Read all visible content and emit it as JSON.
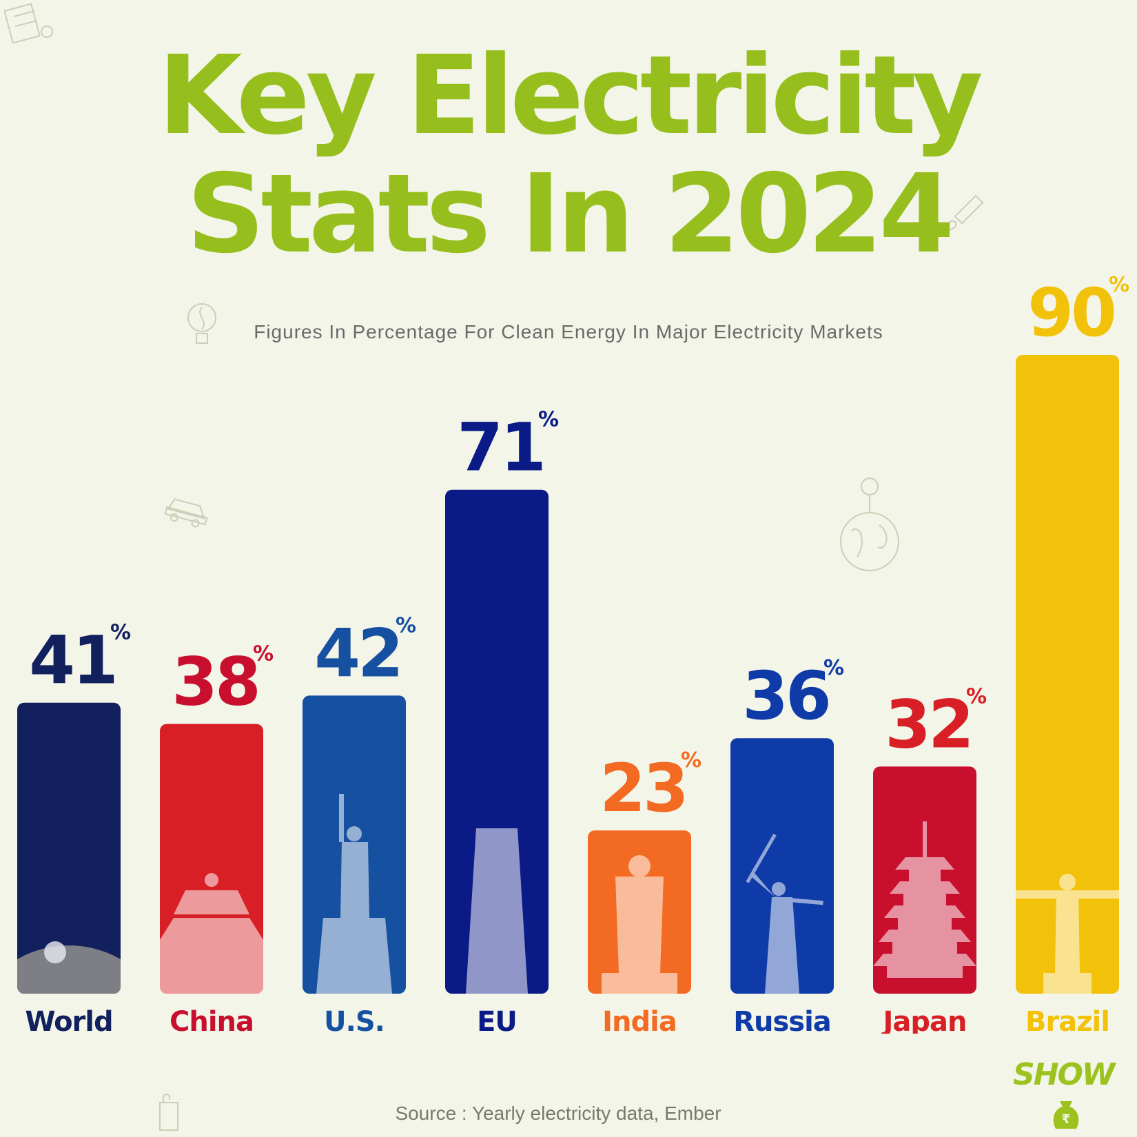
{
  "title_line_1": "Key Electricity",
  "title_line_2": "Stats In 2024",
  "subtitle": "Figures In Percentage For Clean Energy In Major Electricity Markets",
  "source": "Source : Yearly electricity data, Ember",
  "logo_text": "SHOW",
  "colors": {
    "background": "#f3f5e8",
    "title": "#96bf1e"
  },
  "chart_data": {
    "type": "bar",
    "unit_symbol": "%",
    "categories": [
      "World",
      "China",
      "U.S.",
      "EU",
      "India",
      "Russia",
      "Japan",
      "Brazil"
    ],
    "values": [
      41,
      38,
      42,
      71,
      23,
      36,
      32,
      90
    ],
    "bar_colors": [
      "#13205e",
      "#d81f26",
      "#1650a0",
      "#0a1a86",
      "#f36a22",
      "#0e3ba8",
      "#c8102e",
      "#f2c10a"
    ],
    "label_colors": [
      "#13205e",
      "#c8102e",
      "#1650a0",
      "#0a1a86",
      "#f36a22",
      "#0e3ba8",
      "#d81f26",
      "#f2c10a"
    ],
    "landmark_icons": [
      "globe-icon",
      "temple-icon",
      "statue-of-liberty-icon",
      "leaning-tower-icon",
      "statue-of-unity-icon",
      "motherland-statue-icon",
      "pagoda-icon",
      "christ-the-redeemer-icon"
    ],
    "title": "",
    "xlabel": "",
    "ylabel": "",
    "grid": false,
    "legend": "none"
  }
}
